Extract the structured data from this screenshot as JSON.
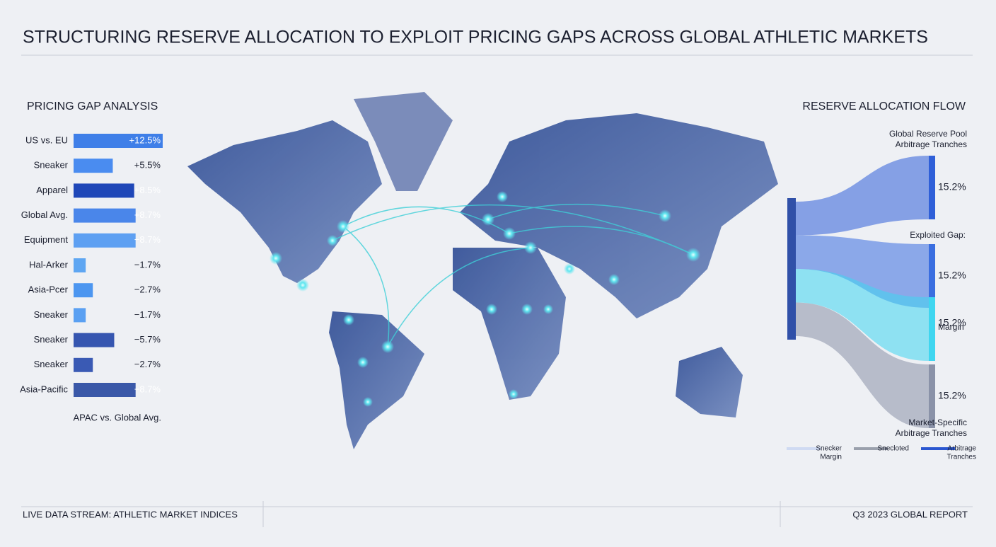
{
  "header": {
    "title": "STRUCTURING RESERVE ALLOCATION TO EXPLOIT PRICING GAPS ACROSS GLOBAL ATHLETIC MARKETS"
  },
  "chart_data": {
    "type": "bar",
    "orientation": "horizontal",
    "title": "PRICING GAP ANALYSIS",
    "categories": [
      "US vs. EU",
      "Sneaker",
      "Apparel",
      "Global Avg.",
      "Equipment",
      "Hal-Arker",
      "Asia-Pcer",
      "Sneaker",
      "Sneaker",
      "Sneaker",
      "Asia-Pacific"
    ],
    "values": [
      12.5,
      5.5,
      8.5,
      8.7,
      -8.7,
      -1.7,
      -2.7,
      -1.7,
      -5.7,
      -2.7,
      -8.7
    ],
    "value_labels": [
      "+12.5%",
      "+5.5%",
      "+8.5%",
      "+8.7%",
      "−8.7%",
      "−1.7%",
      "−2.7%",
      "−1.7%",
      "−5.7%",
      "−2.7%",
      "−8.7%"
    ],
    "colors": [
      "#3f7fe8",
      "#4a8cf0",
      "#1f47b8",
      "#4a86ea",
      "#5ea0f2",
      "#5ea6f2",
      "#4c96f0",
      "#5aa0f2",
      "#3656b0",
      "#3a5ab4",
      "#3a58a8"
    ],
    "note": "APAC vs. Global Avg."
  },
  "flow": {
    "title": "RESERVE ALLOCATION FLOW",
    "source_labels": [
      "Global Reserve Pool",
      "Arbitrage Tranches"
    ],
    "targets": [
      {
        "value": 15.2,
        "value_label": "15.2%",
        "color": "#2f5fd8"
      },
      {
        "value": 15.2,
        "value_label": "15.2%",
        "color": "#3a6ee0"
      },
      {
        "value": 15.2,
        "value_label": "15.2%",
        "color": "#3fd6f0"
      },
      {
        "value": 15.2,
        "value_label": "15.2%",
        "color": "#8a92a8"
      }
    ],
    "notes": {
      "exploited": "Exploited Gap:",
      "margin": "Margin",
      "market": [
        "Market-Specific",
        "Arbitrage Tranches"
      ]
    },
    "legend": [
      {
        "name": [
          "Snecker",
          "Margin"
        ],
        "color": "#cfdaf2"
      },
      {
        "name": [
          "Snecloted"
        ],
        "color": "#9aa0ac"
      },
      {
        "name": [
          "Arbitrage",
          "Tranches"
        ],
        "color": "#2a56d0"
      }
    ]
  },
  "footer": {
    "left": "LIVE DATA STREAM: ATHLETIC MARKET INDICES",
    "right": "Q3 2023 GLOBAL REPORT"
  }
}
